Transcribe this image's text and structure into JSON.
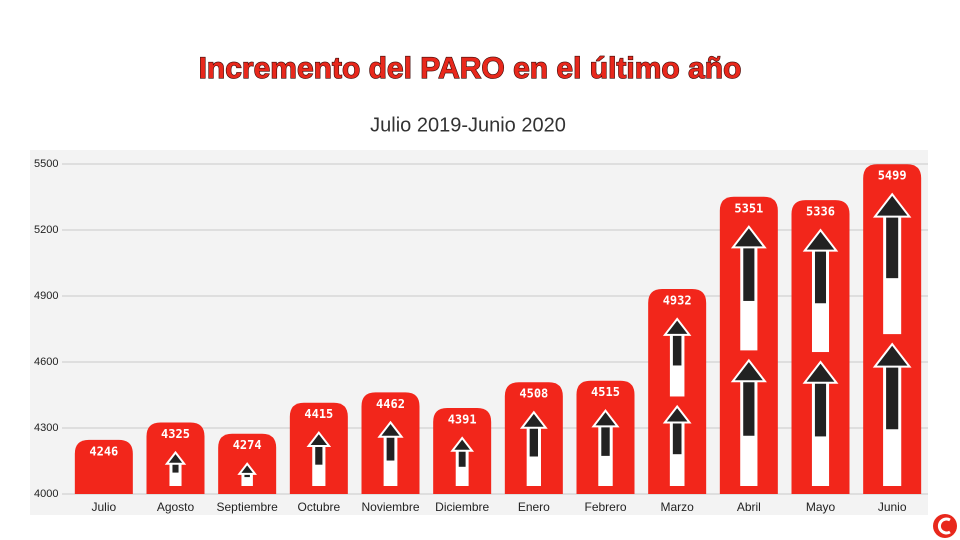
{
  "chart_data": {
    "type": "bar",
    "title": "Incremento del PARO en el último año",
    "subtitle": "Julio 2019-Junio 2020",
    "categories": [
      "Julio",
      "Agosto",
      "Septiembre",
      "Octubre",
      "Noviembre",
      "Diciembre",
      "Enero",
      "Febrero",
      "Marzo",
      "Abril",
      "Mayo",
      "Junio"
    ],
    "values": [
      4246,
      4325,
      4274,
      4415,
      4462,
      4391,
      4508,
      4515,
      4932,
      5351,
      5336,
      5499
    ],
    "color": "#f2261b",
    "ylim": [
      4000,
      5500
    ],
    "yticks": [
      4000,
      4300,
      4600,
      4900,
      5200,
      5500
    ],
    "grid": true
  }
}
